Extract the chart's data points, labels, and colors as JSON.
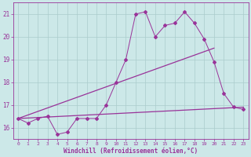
{
  "xlabel": "Windchill (Refroidissement éolien,°C)",
  "bg_color": "#cce8e8",
  "grid_color": "#aacccc",
  "line_color": "#993399",
  "xlim": [
    -0.5,
    23.5
  ],
  "ylim": [
    15.5,
    21.5
  ],
  "xticks": [
    0,
    1,
    2,
    3,
    4,
    5,
    6,
    7,
    8,
    9,
    10,
    11,
    12,
    13,
    14,
    15,
    16,
    17,
    18,
    19,
    20,
    21,
    22,
    23
  ],
  "yticks": [
    16,
    17,
    18,
    19,
    20,
    21
  ],
  "series1_x": [
    0,
    1,
    2,
    3,
    4,
    5,
    6,
    7,
    8,
    9,
    10,
    11,
    12,
    13,
    14,
    15,
    16,
    17,
    18,
    19,
    20,
    21,
    22,
    23
  ],
  "series1_y": [
    16.4,
    16.2,
    16.4,
    16.5,
    15.7,
    15.8,
    16.4,
    16.4,
    16.4,
    17.0,
    18.0,
    19.0,
    21.0,
    21.1,
    20.0,
    20.5,
    20.6,
    21.1,
    20.6,
    19.9,
    18.9,
    17.5,
    16.9,
    16.8
  ],
  "trend1_x": [
    0,
    23
  ],
  "trend1_y": [
    16.4,
    16.9
  ],
  "trend2_x": [
    0,
    20
  ],
  "trend2_y": [
    16.4,
    19.5
  ]
}
